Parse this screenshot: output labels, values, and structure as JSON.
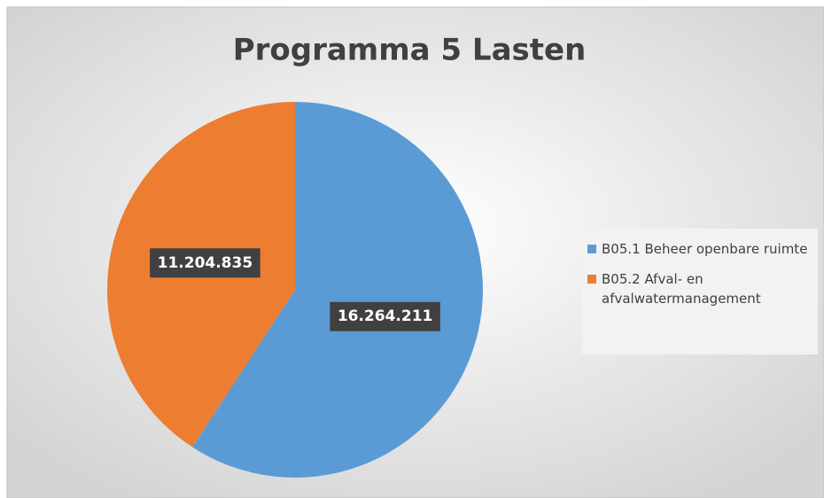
{
  "chart_data": {
    "type": "pie",
    "title": "Programma 5 Lasten",
    "categories": [
      "B05.1 Beheer openbare ruimte",
      "B05.2 Afval- en afvalwatermanagement"
    ],
    "values": [
      16264211,
      11204835
    ],
    "value_labels": [
      "16.264.211",
      "11.204.835"
    ],
    "colors": [
      "#5b9bd5",
      "#ed7d31"
    ],
    "legend": "right"
  }
}
